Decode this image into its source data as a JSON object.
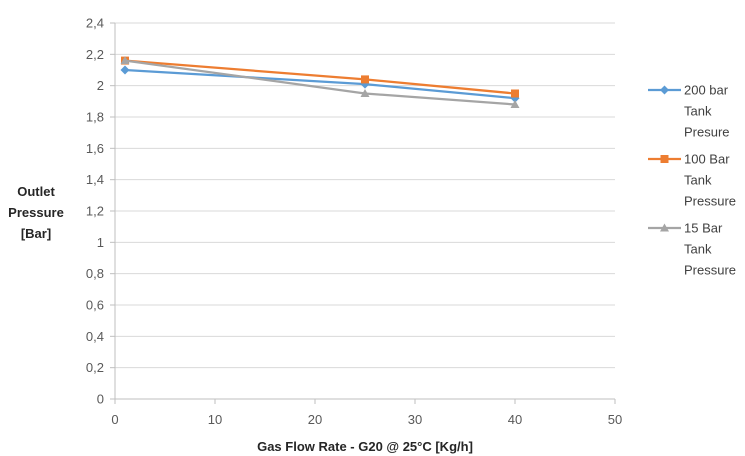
{
  "chart_data": {
    "type": "line",
    "xlabel": "Gas Flow Rate - G20 @ 25°C [Kg/h]",
    "ylabel_lines": [
      "Outlet",
      "Pressure",
      "[Bar]"
    ],
    "xlim": [
      0,
      50
    ],
    "ylim": [
      0,
      2.4
    ],
    "xticks": [
      "0",
      "10",
      "20",
      "30",
      "40",
      "50"
    ],
    "yticks": [
      "0",
      "0,2",
      "0,4",
      "0,6",
      "0,8",
      "1",
      "1,2",
      "1,4",
      "1,6",
      "1,8",
      "2",
      "2,2",
      "2,4"
    ],
    "grid": "horizontal",
    "legend_position": "right",
    "series": [
      {
        "name": "200 bar Tank Presure",
        "legend_lines": [
          "200 bar",
          "Tank",
          "Presure"
        ],
        "marker": "diamond",
        "color": "#5B9BD5",
        "x": [
          1,
          25,
          40
        ],
        "y": [
          2.1,
          2.01,
          1.92
        ]
      },
      {
        "name": "100 Bar Tank Pressure",
        "legend_lines": [
          "100 Bar",
          "Tank",
          "Pressure"
        ],
        "marker": "square",
        "color": "#ED7D31",
        "x": [
          1,
          25,
          40
        ],
        "y": [
          2.16,
          2.04,
          1.95
        ]
      },
      {
        "name": "15 Bar Tank Pressure",
        "legend_lines": [
          "15 Bar",
          "Tank",
          "Pressure"
        ],
        "marker": "triangle",
        "color": "#A5A5A5",
        "x": [
          1,
          25,
          40
        ],
        "y": [
          2.16,
          1.95,
          1.88
        ]
      }
    ]
  }
}
